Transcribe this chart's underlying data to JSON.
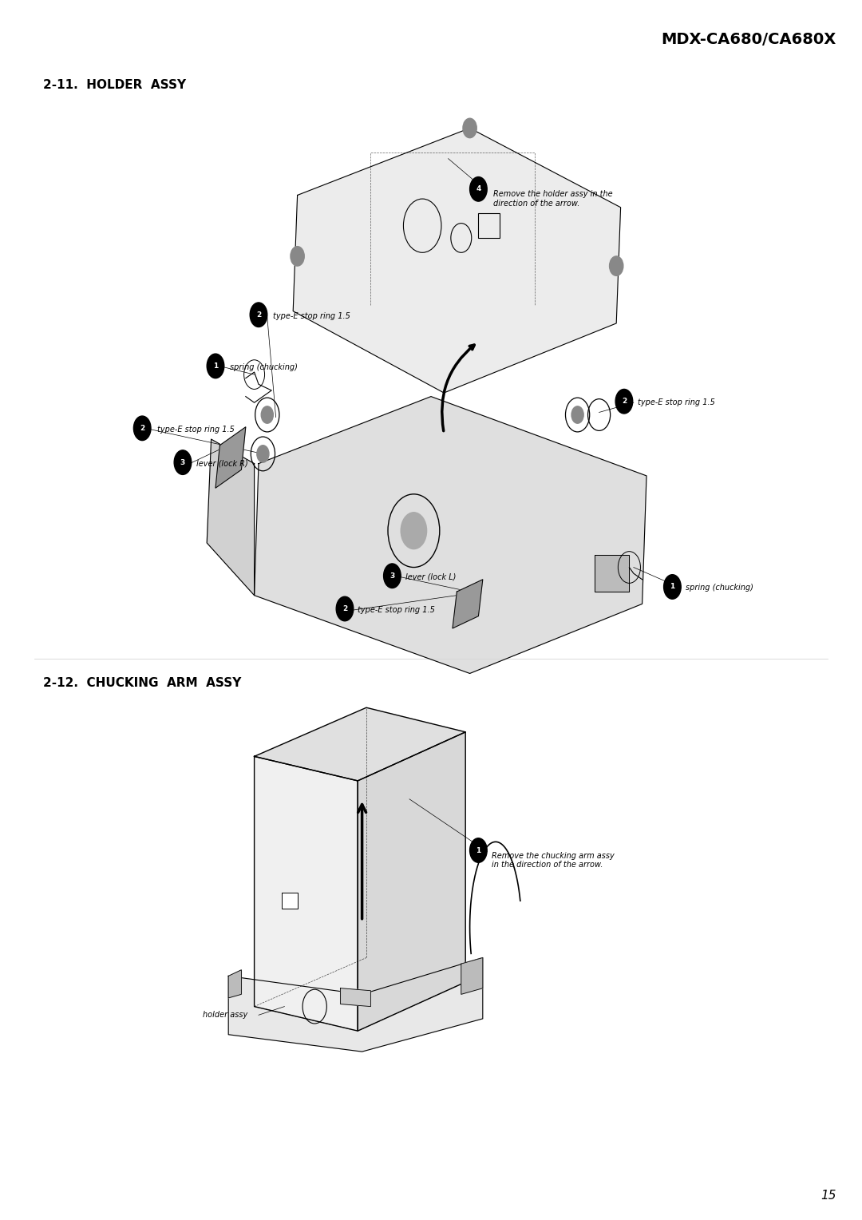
{
  "page_title": "MDX-CA680/CA680X",
  "page_number": "15",
  "section1_title": "2-11.  HOLDER  ASSY",
  "section2_title": "2-12.  CHUCKING  ARM  ASSY",
  "bg_color": "#ffffff",
  "text_color": "#000000"
}
